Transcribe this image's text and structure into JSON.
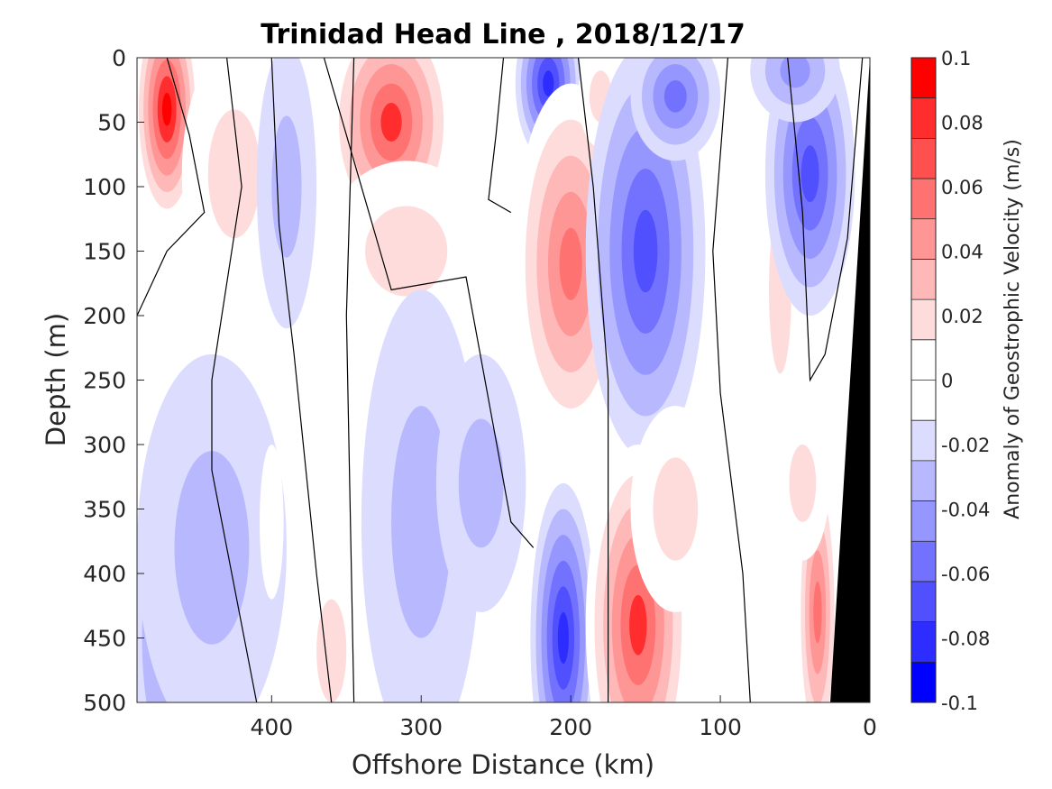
{
  "chart_data": {
    "type": "heatmap",
    "title": "Trinidad Head Line , 2018/12/17",
    "xlabel": "Offshore Distance (km)",
    "ylabel": "Depth (m)",
    "xlim": [
      490,
      0
    ],
    "ylim": [
      0,
      500
    ],
    "x_reversed": true,
    "y_reversed": true,
    "x_ticks": [
      "400",
      "300",
      "200",
      "100",
      "0"
    ],
    "y_ticks": [
      "0",
      "50",
      "100",
      "150",
      "200",
      "250",
      "300",
      "350",
      "400",
      "450",
      "500"
    ],
    "colorbar": {
      "label": "Anomaly of Geostrophic Velocity (m/s)",
      "range": [
        -0.1,
        0.1
      ],
      "ticks": [
        "0.1",
        "0.08",
        "0.06",
        "0.04",
        "0.02",
        "0",
        "-0.02",
        "-0.04",
        "-0.06",
        "-0.08",
        "-0.1"
      ],
      "colors": [
        "#ff0000",
        "#ff2d2d",
        "#ff5050",
        "#ff7272",
        "#ff9696",
        "#ffb8b8",
        "#ffdcdc",
        "#ffffff",
        "#ffffff",
        "#dcdcff",
        "#b8b8ff",
        "#9696ff",
        "#7272ff",
        "#5050ff",
        "#2d2dff",
        "#0000ff"
      ]
    },
    "grid": false,
    "shaded_bottom": "black",
    "features": [
      {
        "type": "anomaly",
        "x": 470,
        "depth": 40,
        "value": 0.09,
        "rx": 22,
        "rdepth": 90
      },
      {
        "type": "anomaly",
        "x": 425,
        "depth": 90,
        "value": 0.02,
        "rx": 35,
        "rdepth": 100
      },
      {
        "type": "anomaly",
        "x": 390,
        "depth": 100,
        "value": -0.02,
        "rx": 20,
        "rdepth": 110
      },
      {
        "type": "anomaly",
        "x": 320,
        "depth": 50,
        "value": 0.08,
        "rx": 42,
        "rdepth": 90
      },
      {
        "type": "anomaly",
        "x": 310,
        "depth": 150,
        "value": 0.02,
        "rx": 55,
        "rdepth": 70
      },
      {
        "type": "anomaly",
        "x": 215,
        "depth": 20,
        "value": -0.08,
        "rx": 22,
        "rdepth": 60
      },
      {
        "type": "anomaly",
        "x": 200,
        "depth": 160,
        "value": 0.06,
        "rx": 38,
        "rdepth": 140
      },
      {
        "type": "anomaly",
        "x": 180,
        "depth": 30,
        "value": 0.02,
        "rx": 15,
        "rdepth": 40
      },
      {
        "type": "anomaly",
        "x": 150,
        "depth": 150,
        "value": -0.06,
        "rx": 40,
        "rdepth": 160
      },
      {
        "type": "anomaly",
        "x": 130,
        "depth": 30,
        "value": -0.05,
        "rx": 30,
        "rdepth": 50
      },
      {
        "type": "anomaly",
        "x": 60,
        "depth": 180,
        "value": 0.02,
        "rx": 15,
        "rdepth": 130
      },
      {
        "type": "anomaly",
        "x": 40,
        "depth": 90,
        "value": -0.06,
        "rx": 30,
        "rdepth": 110
      },
      {
        "type": "anomaly",
        "x": 50,
        "depth": 10,
        "value": -0.04,
        "rx": 30,
        "rdepth": 40
      },
      {
        "type": "anomaly",
        "x": 470,
        "depth": 450,
        "value": -0.04,
        "rx": 25,
        "rdepth": 130
      },
      {
        "type": "anomaly",
        "x": 440,
        "depth": 380,
        "value": -0.02,
        "rx": 50,
        "rdepth": 150
      },
      {
        "type": "anomaly",
        "x": 360,
        "depth": 460,
        "value": 0.03,
        "rx": 20,
        "rdepth": 80
      },
      {
        "type": "anomaly",
        "x": 400,
        "depth": 360,
        "value": 0.015,
        "rx": 8,
        "rdepth": 60
      },
      {
        "type": "anomaly",
        "x": 300,
        "depth": 360,
        "value": -0.03,
        "rx": 40,
        "rdepth": 180
      },
      {
        "type": "anomaly",
        "x": 260,
        "depth": 330,
        "value": -0.02,
        "rx": 30,
        "rdepth": 100
      },
      {
        "type": "anomaly",
        "x": 205,
        "depth": 450,
        "value": -0.07,
        "rx": 22,
        "rdepth": 120
      },
      {
        "type": "anomaly",
        "x": 155,
        "depth": 440,
        "value": 0.07,
        "rx": 35,
        "rdepth": 140
      },
      {
        "type": "anomaly",
        "x": 130,
        "depth": 350,
        "value": 0.02,
        "rx": 30,
        "rdepth": 80
      },
      {
        "type": "anomaly",
        "x": 35,
        "depth": 430,
        "value": 0.06,
        "rx": 14,
        "rdepth": 120
      },
      {
        "type": "anomaly",
        "x": 45,
        "depth": 330,
        "value": 0.02,
        "rx": 18,
        "rdepth": 60
      }
    ]
  }
}
